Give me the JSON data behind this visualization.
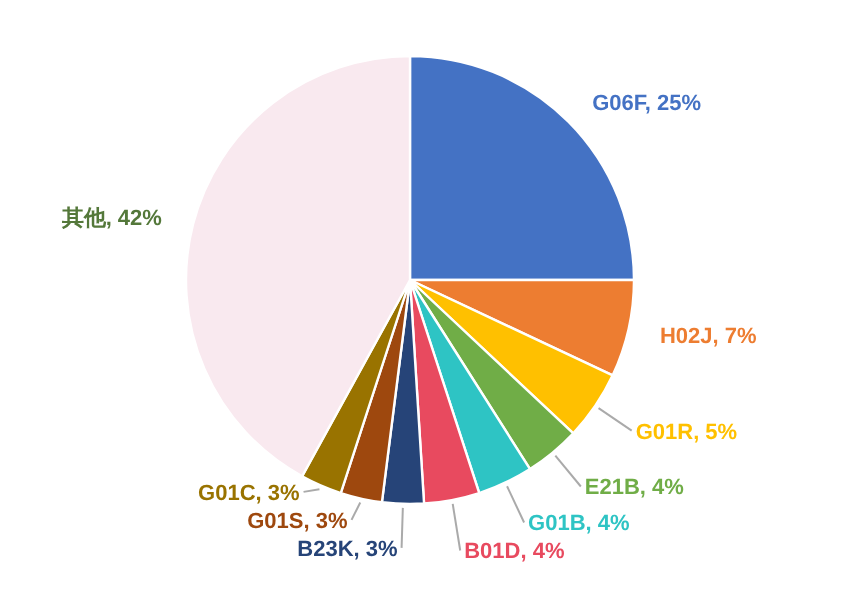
{
  "chart_data": {
    "type": "pie",
    "categories": [
      "G06F",
      "H02J",
      "G01R",
      "E21B",
      "G01B",
      "B01D",
      "B23K",
      "G01S",
      "G01C",
      "其他"
    ],
    "values": [
      25,
      7,
      5,
      4,
      4,
      4,
      3,
      3,
      3,
      42
    ],
    "colors": [
      "#4472c4",
      "#ed7d31",
      "#ffc000",
      "#70ad47",
      "#2ec4c4",
      "#e84a5f",
      "#264478",
      "#9e480e",
      "#997300",
      "#f9e9ef"
    ],
    "value_labels": [
      "25%",
      "7%",
      "5%",
      "4%",
      "4%",
      "4%",
      "3%",
      "3%",
      "3%",
      "42%"
    ]
  }
}
